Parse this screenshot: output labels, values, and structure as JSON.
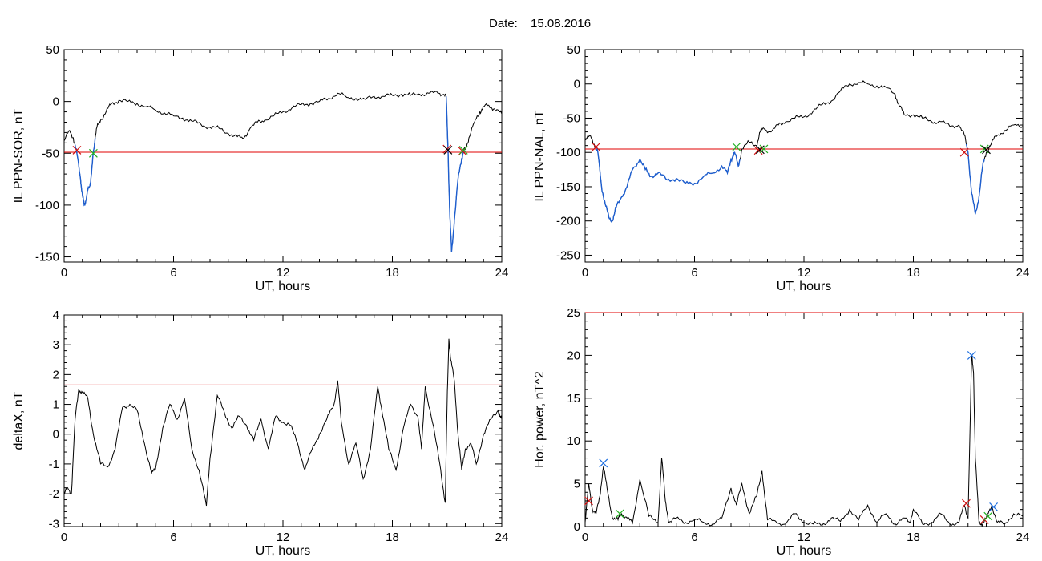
{
  "header": {
    "date_label": "Date:",
    "date_value": "15.08.2016"
  },
  "colors": {
    "trace": "#000000",
    "threshold": "#e00000",
    "highlight": "#1e5fd0",
    "marker_red": "#d01010",
    "marker_green": "#20b020",
    "marker_blue": "#2070e0"
  },
  "chart_data": [
    {
      "type": "line",
      "id": "sor",
      "xlabel": "UT, hours",
      "ylabel": "IL PPN-SOR, nT",
      "xlim": [
        0,
        24
      ],
      "ylim": [
        -155,
        50
      ],
      "xticks": [
        0,
        6,
        12,
        18,
        24
      ],
      "yticks": [
        -150,
        -100,
        -50,
        0,
        50
      ],
      "threshold": -49,
      "x": [
        0,
        0.3,
        0.5,
        0.7,
        0.9,
        1.0,
        1.1,
        1.2,
        1.3,
        1.4,
        1.5,
        1.6,
        1.7,
        1.8,
        2.0,
        2.3,
        2.6,
        3.0,
        3.5,
        4.0,
        4.5,
        5.0,
        5.5,
        6.0,
        6.5,
        7.0,
        7.5,
        8.0,
        8.5,
        9.0,
        9.5,
        9.8,
        10.2,
        10.6,
        11.0,
        11.5,
        12.0,
        12.5,
        13.0,
        13.5,
        14.0,
        14.5,
        15.0,
        15.5,
        16.0,
        16.5,
        17.0,
        17.5,
        18.0,
        18.5,
        19.0,
        19.5,
        20.0,
        20.5,
        20.8,
        20.95,
        21.05,
        21.15,
        21.25,
        21.4,
        21.6,
        21.8,
        21.9,
        22.0,
        22.2,
        22.5,
        22.8,
        23.0,
        23.3,
        23.6,
        24.0
      ],
      "y": [
        -38,
        -28,
        -35,
        -50,
        -75,
        -90,
        -100,
        -95,
        -85,
        -82,
        -70,
        -50,
        -35,
        -25,
        -18,
        -10,
        -2,
        1,
        0,
        -2,
        -5,
        -8,
        -11,
        -14,
        -16,
        -19,
        -22,
        -25,
        -26,
        -31,
        -34,
        -36,
        -26,
        -20,
        -18,
        -14,
        -10,
        -6,
        -3,
        -2,
        0,
        3,
        8,
        4,
        3,
        2,
        5,
        5,
        6,
        7,
        6,
        7,
        8,
        8,
        7,
        5,
        -45,
        -110,
        -145,
        -115,
        -75,
        -55,
        -48,
        -46,
        -35,
        -20,
        -10,
        -5,
        -4,
        -7,
        -12
      ],
      "highlight_ranges": [
        [
          0.6,
          1.7
        ],
        [
          20.95,
          21.9
        ]
      ],
      "markers": [
        {
          "x": 0.7,
          "y": -47,
          "color": "red"
        },
        {
          "x": 1.6,
          "y": -50,
          "color": "green"
        },
        {
          "x": 21.0,
          "y": -46,
          "color": "red"
        },
        {
          "x": 21.05,
          "y": -47,
          "color": "black"
        },
        {
          "x": 21.85,
          "y": -48,
          "color": "red"
        },
        {
          "x": 21.9,
          "y": -47,
          "color": "green"
        }
      ]
    },
    {
      "type": "line",
      "id": "nal",
      "xlabel": "UT, hours",
      "ylabel": "IL PPN-NAL, nT",
      "xlim": [
        0,
        24
      ],
      "ylim": [
        -260,
        50
      ],
      "xticks": [
        0,
        6,
        12,
        18,
        24
      ],
      "yticks": [
        -250,
        -200,
        -150,
        -100,
        -50,
        0,
        50
      ],
      "threshold": -95,
      "x": [
        0,
        0.3,
        0.5,
        0.7,
        0.9,
        1.1,
        1.3,
        1.5,
        1.7,
        2.0,
        2.3,
        2.6,
        3.0,
        3.3,
        3.6,
        4.0,
        4.5,
        5.0,
        5.5,
        6.0,
        6.5,
        7.0,
        7.5,
        7.8,
        8.0,
        8.2,
        8.4,
        8.6,
        9.0,
        9.4,
        9.6,
        9.8,
        10.2,
        10.6,
        11.0,
        11.5,
        12.0,
        12.5,
        13.0,
        13.5,
        14.0,
        14.5,
        15.0,
        15.5,
        16.0,
        16.5,
        17.0,
        17.2,
        17.5,
        18.0,
        18.5,
        19.0,
        19.5,
        20.0,
        20.5,
        20.8,
        21.0,
        21.2,
        21.4,
        21.6,
        21.8,
        22.0,
        22.3,
        22.6,
        23.0,
        23.5,
        24.0
      ],
      "y": [
        -82,
        -76,
        -88,
        -100,
        -150,
        -175,
        -195,
        -200,
        -180,
        -165,
        -150,
        -125,
        -110,
        -125,
        -135,
        -130,
        -140,
        -138,
        -145,
        -145,
        -135,
        -130,
        -120,
        -130,
        -110,
        -100,
        -120,
        -95,
        -85,
        -90,
        -70,
        -65,
        -70,
        -60,
        -55,
        -50,
        -48,
        -40,
        -30,
        -25,
        -10,
        0,
        2,
        0,
        -3,
        -5,
        -15,
        -30,
        -45,
        -45,
        -50,
        -55,
        -55,
        -62,
        -60,
        -75,
        -100,
        -160,
        -190,
        -165,
        -120,
        -100,
        -85,
        -75,
        -68,
        -60,
        -62
      ],
      "highlight_ranges": [
        [
          0.6,
          1.5
        ],
        [
          1.5,
          8.5
        ],
        [
          20.9,
          21.9
        ]
      ],
      "markers": [
        {
          "x": 0.6,
          "y": -92,
          "color": "red"
        },
        {
          "x": 8.3,
          "y": -92,
          "color": "green"
        },
        {
          "x": 9.5,
          "y": -97,
          "color": "red"
        },
        {
          "x": 9.6,
          "y": -96,
          "color": "black"
        },
        {
          "x": 9.8,
          "y": -95,
          "color": "green"
        },
        {
          "x": 20.8,
          "y": -100,
          "color": "red"
        },
        {
          "x": 21.9,
          "y": -95,
          "color": "green"
        },
        {
          "x": 22.0,
          "y": -96,
          "color": "black"
        }
      ]
    },
    {
      "type": "line",
      "id": "deltax",
      "xlabel": "UT, hours",
      "ylabel": "deltaX, nT",
      "xlim": [
        0,
        24
      ],
      "ylim": [
        -3.1,
        4
      ],
      "xticks": [
        0,
        6,
        12,
        18,
        24
      ],
      "yticks": [
        -3,
        -2,
        -1,
        0,
        1,
        2,
        3,
        4
      ],
      "threshold": 1.65,
      "x": [
        0,
        0.2,
        0.4,
        0.6,
        0.8,
        1.0,
        1.3,
        1.6,
        2.0,
        2.4,
        2.8,
        3.2,
        3.6,
        4.0,
        4.4,
        4.8,
        5.0,
        5.4,
        5.8,
        6.2,
        6.6,
        7.0,
        7.4,
        7.8,
        8.0,
        8.4,
        8.8,
        9.2,
        9.6,
        10.0,
        10.4,
        10.8,
        11.2,
        11.6,
        12.0,
        12.4,
        12.8,
        13.2,
        13.6,
        14.0,
        14.4,
        14.8,
        15.0,
        15.2,
        15.6,
        16.0,
        16.4,
        16.8,
        17.2,
        17.4,
        17.8,
        18.2,
        18.6,
        19.0,
        19.4,
        19.6,
        19.8,
        20.2,
        20.6,
        20.9,
        21.0,
        21.1,
        21.2,
        21.4,
        21.6,
        21.8,
        22.0,
        22.3,
        22.6,
        23.0,
        23.4,
        23.8,
        24.0
      ],
      "y": [
        -2.0,
        -1.8,
        -2.0,
        0.5,
        1.5,
        1.4,
        1.2,
        0.0,
        -1.0,
        -1.1,
        -0.5,
        0.9,
        1.0,
        0.8,
        -0.3,
        -1.3,
        -1.2,
        0.2,
        1.0,
        0.5,
        1.2,
        -0.5,
        -1.2,
        -2.4,
        -0.8,
        1.3,
        0.7,
        0.2,
        0.6,
        0.3,
        -0.2,
        0.5,
        -0.5,
        0.6,
        0.4,
        0.3,
        -0.3,
        -1.2,
        -0.5,
        0.0,
        0.5,
        1.0,
        1.8,
        0.4,
        -1.0,
        -0.3,
        -1.5,
        -0.5,
        1.6,
        0.9,
        -0.5,
        -1.2,
        0.2,
        1.0,
        0.6,
        -0.5,
        1.6,
        0.4,
        -1.0,
        -2.3,
        1.0,
        3.2,
        2.5,
        1.8,
        0.0,
        -1.2,
        -0.5,
        -0.3,
        -1.0,
        0.0,
        0.5,
        0.8,
        0.5
      ],
      "highlight_ranges": [],
      "markers": []
    },
    {
      "type": "line",
      "id": "power",
      "xlabel": "UT, hours",
      "ylabel": "Hor. power, nT^2",
      "xlim": [
        0,
        24
      ],
      "ylim": [
        0,
        25
      ],
      "xticks": [
        0,
        6,
        12,
        18,
        24
      ],
      "yticks": [
        0,
        5,
        10,
        15,
        20,
        25
      ],
      "threshold": 25,
      "x": [
        0,
        0.2,
        0.4,
        0.6,
        0.8,
        1.0,
        1.2,
        1.5,
        1.8,
        2.0,
        2.3,
        2.6,
        3.0,
        3.5,
        4.0,
        4.2,
        4.4,
        4.6,
        5.0,
        5.5,
        6.0,
        6.5,
        7.0,
        7.5,
        8.0,
        8.3,
        8.6,
        9.0,
        9.4,
        9.7,
        10.0,
        10.5,
        11.0,
        11.5,
        12.0,
        12.5,
        13.0,
        13.5,
        14.0,
        14.5,
        15.0,
        15.5,
        16.0,
        16.5,
        17.0,
        17.5,
        17.8,
        18.0,
        18.5,
        19.0,
        19.5,
        20.0,
        20.5,
        20.8,
        21.0,
        21.2,
        21.3,
        21.4,
        21.6,
        21.8,
        22.0,
        22.3,
        22.6,
        23.0,
        23.5,
        24.0
      ],
      "y": [
        0.5,
        5.0,
        2.0,
        1.5,
        3.5,
        7.0,
        4.5,
        1.0,
        0.8,
        1.5,
        1.0,
        0.4,
        5.5,
        1.2,
        0.5,
        8.0,
        3.0,
        0.5,
        1.0,
        0.5,
        0.8,
        0.5,
        0.3,
        1.0,
        4.5,
        2.5,
        5.0,
        1.5,
        3.5,
        6.5,
        0.8,
        0.5,
        0.3,
        1.5,
        0.5,
        0.3,
        0.2,
        1.0,
        0.6,
        2.0,
        0.8,
        2.5,
        0.5,
        1.5,
        0.3,
        1.0,
        0.5,
        2.0,
        0.3,
        0.5,
        1.5,
        0.3,
        0.5,
        2.5,
        1.0,
        20.0,
        18.0,
        8.0,
        0.5,
        0.3,
        1.0,
        2.5,
        0.5,
        0.3,
        1.5,
        1.2
      ],
      "highlight_ranges": [],
      "markers": [
        {
          "x": 0.2,
          "y": 3.0,
          "color": "red"
        },
        {
          "x": 1.0,
          "y": 7.4,
          "color": "blue"
        },
        {
          "x": 1.9,
          "y": 1.5,
          "color": "green"
        },
        {
          "x": 20.9,
          "y": 2.7,
          "color": "red"
        },
        {
          "x": 21.2,
          "y": 20.0,
          "color": "blue"
        },
        {
          "x": 21.9,
          "y": 0.8,
          "color": "red"
        },
        {
          "x": 22.1,
          "y": 1.2,
          "color": "green"
        },
        {
          "x": 22.4,
          "y": 2.3,
          "color": "blue"
        }
      ]
    }
  ]
}
